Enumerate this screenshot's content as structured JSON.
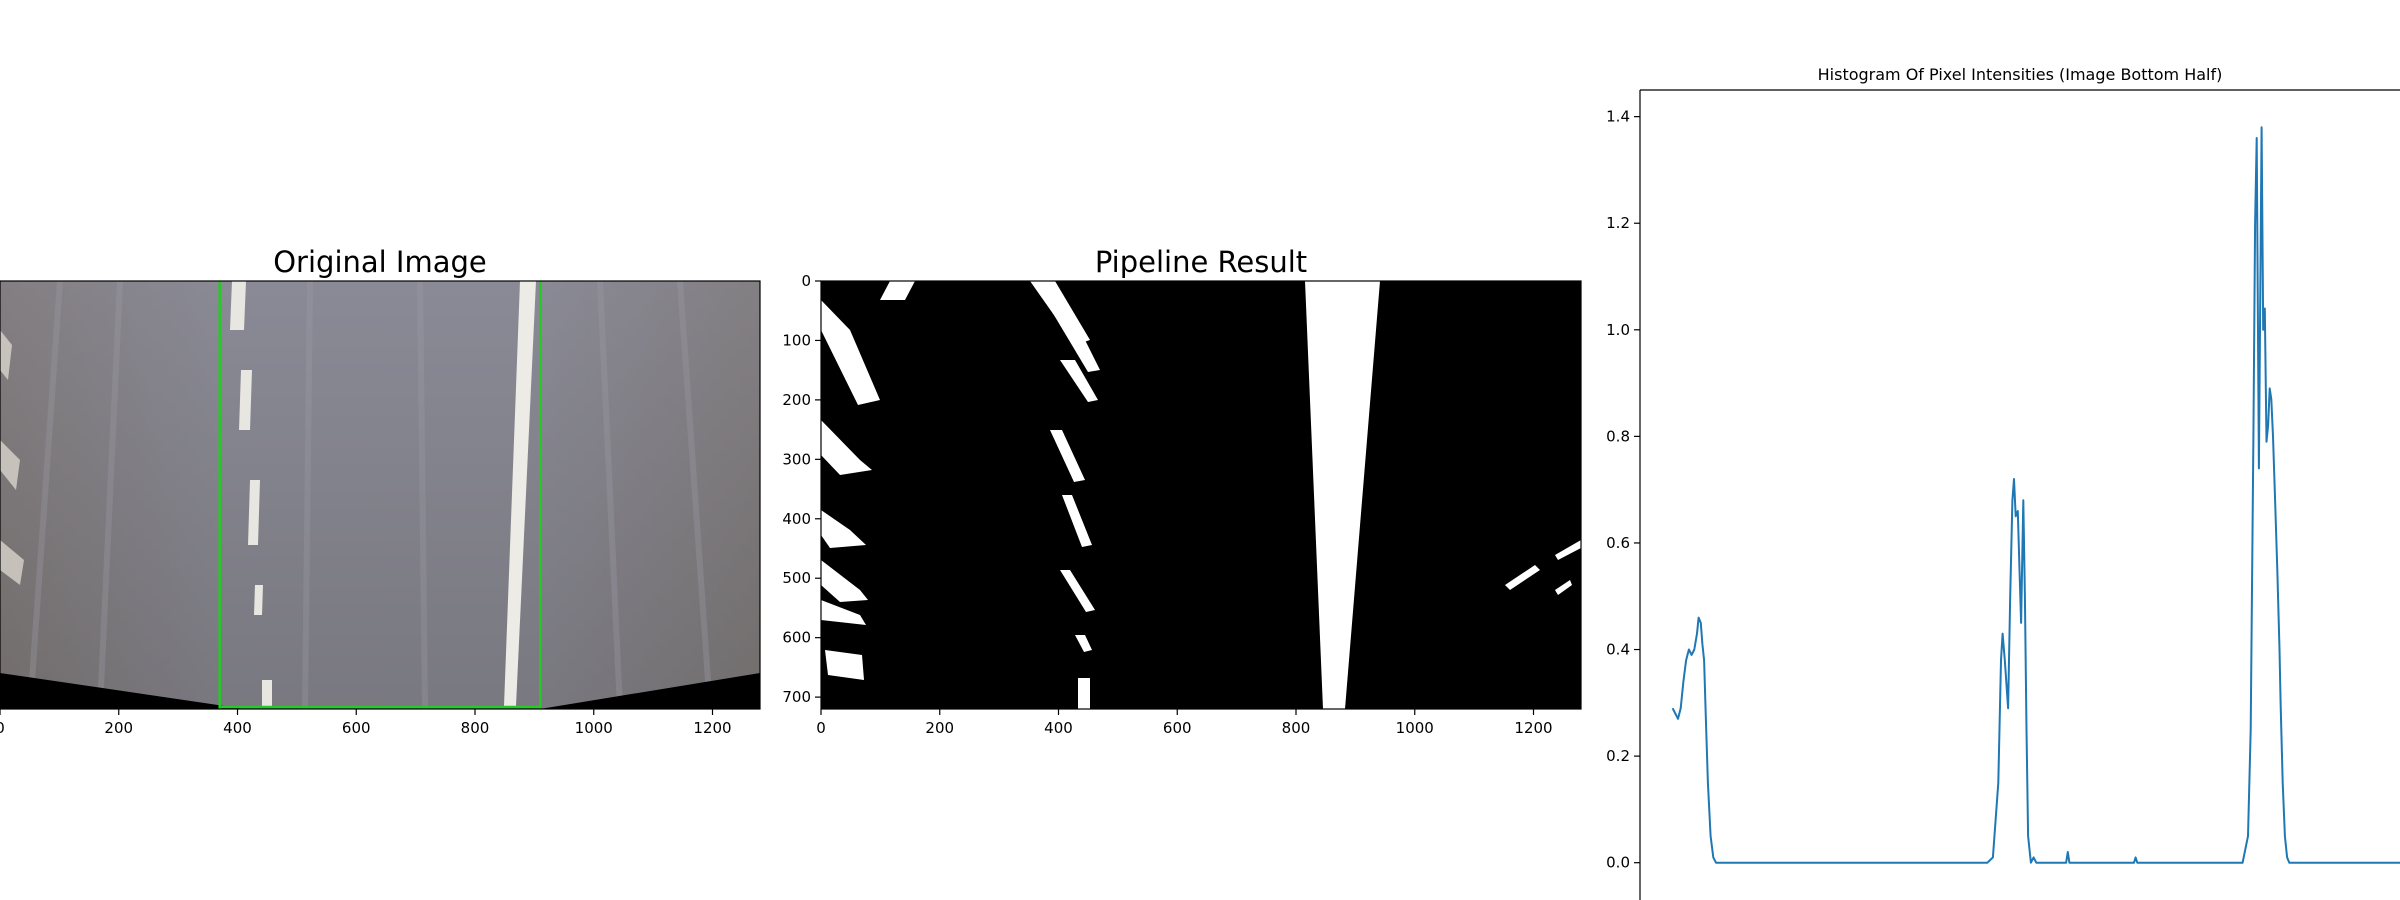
{
  "colors": {
    "line": "#1f77b4",
    "roi": "#22cc22",
    "axes": "#000000",
    "background": "#ffffff"
  },
  "chart_data": [
    {
      "type": "image",
      "title": "Original Image",
      "content": "perspective-warped road photo",
      "xticks": [
        0,
        200,
        400,
        600,
        800,
        1000,
        1200
      ],
      "xticklabels": [
        "0",
        "200",
        "400",
        "600",
        "800",
        "1000",
        "1200"
      ],
      "xlim": [
        0,
        1280
      ],
      "ylim": [
        720,
        0
      ],
      "roi_lines_x": [
        370,
        910
      ]
    },
    {
      "type": "image",
      "title": "Pipeline Result",
      "content": "binary lane mask",
      "xticks": [
        0,
        200,
        400,
        600,
        800,
        1000,
        1200
      ],
      "xticklabels": [
        "0",
        "200",
        "400",
        "600",
        "800",
        "1000",
        "1200"
      ],
      "yticks": [
        0,
        100,
        200,
        300,
        400,
        500,
        600,
        700
      ],
      "yticklabels": [
        "0",
        "100",
        "200",
        "300",
        "400",
        "500",
        "600",
        "700"
      ],
      "xlim": [
        0,
        1280
      ],
      "ylim": [
        720,
        0
      ]
    },
    {
      "type": "line",
      "title": "Histogram Of Pixel Intensities (Image Bottom Half)",
      "xlim": [
        -60,
        1340
      ],
      "ylim": [
        -0.07,
        1.45
      ],
      "yticks": [
        0.0,
        0.2,
        0.4,
        0.6,
        0.8,
        1.0,
        1.2,
        1.4
      ],
      "yticklabels": [
        "0.0",
        "0.2",
        "0.4",
        "0.6",
        "0.8",
        "1.0",
        "1.2",
        "1.4"
      ],
      "series": [
        {
          "x": [
            0,
            5,
            10,
            15,
            20,
            25,
            30,
            35,
            40,
            45,
            48,
            52,
            55,
            58,
            61,
            65,
            70,
            75,
            80,
            90,
            100,
            150,
            200,
            300,
            400,
            450,
            500,
            550,
            560,
            580,
            590,
            600,
            605,
            608,
            612,
            618,
            622,
            626,
            629,
            632,
            636,
            639,
            642,
            646,
            649,
            652,
            655,
            660,
            665,
            670,
            700,
            725,
            728,
            731,
            734,
            760,
            800,
            830,
            850,
            853,
            856,
            860,
            900,
            950,
            1000,
            1050,
            1060,
            1065,
            1070,
            1073,
            1076,
            1080,
            1085,
            1088,
            1091,
            1094,
            1097,
            1100,
            1103,
            1106,
            1110,
            1114,
            1118,
            1120,
            1124,
            1128,
            1132,
            1136,
            1140,
            1144,
            1150,
            1160,
            1170,
            1180,
            1200,
            1260,
            1280,
            1300,
            1310,
            1315,
            1320,
            1325,
            1330,
            1335,
            1340,
            1345,
            1355,
            1362
          ],
          "y": [
            0.29,
            0.28,
            0.27,
            0.29,
            0.34,
            0.38,
            0.4,
            0.39,
            0.4,
            0.43,
            0.46,
            0.45,
            0.41,
            0.38,
            0.28,
            0.15,
            0.05,
            0.01,
            0.0,
            0.0,
            0.0,
            0.0,
            0.0,
            0.0,
            0.0,
            0.0,
            0.0,
            0.0,
            0.0,
            0.0,
            0.01,
            0.15,
            0.38,
            0.43,
            0.38,
            0.29,
            0.5,
            0.68,
            0.72,
            0.65,
            0.66,
            0.55,
            0.45,
            0.68,
            0.5,
            0.25,
            0.05,
            0.0,
            0.01,
            0.0,
            0.0,
            0.0,
            0.02,
            0.0,
            0.0,
            0.0,
            0.0,
            0.0,
            0.0,
            0.01,
            0.0,
            0.0,
            0.0,
            0.0,
            0.0,
            0.0,
            0.05,
            0.25,
            0.8,
            1.2,
            1.36,
            0.74,
            1.38,
            1.0,
            1.04,
            0.79,
            0.82,
            0.89,
            0.87,
            0.8,
            0.68,
            0.55,
            0.4,
            0.3,
            0.15,
            0.05,
            0.01,
            0.0,
            0.0,
            0.0,
            0.0,
            0.0,
            0.0,
            0.0,
            0.0,
            0.0,
            0.0,
            0.0,
            0.0,
            0.0,
            0.0,
            0.0,
            0.0,
            0.0,
            0.0,
            0.0,
            0.0,
            0.0
          ]
        }
      ]
    }
  ]
}
